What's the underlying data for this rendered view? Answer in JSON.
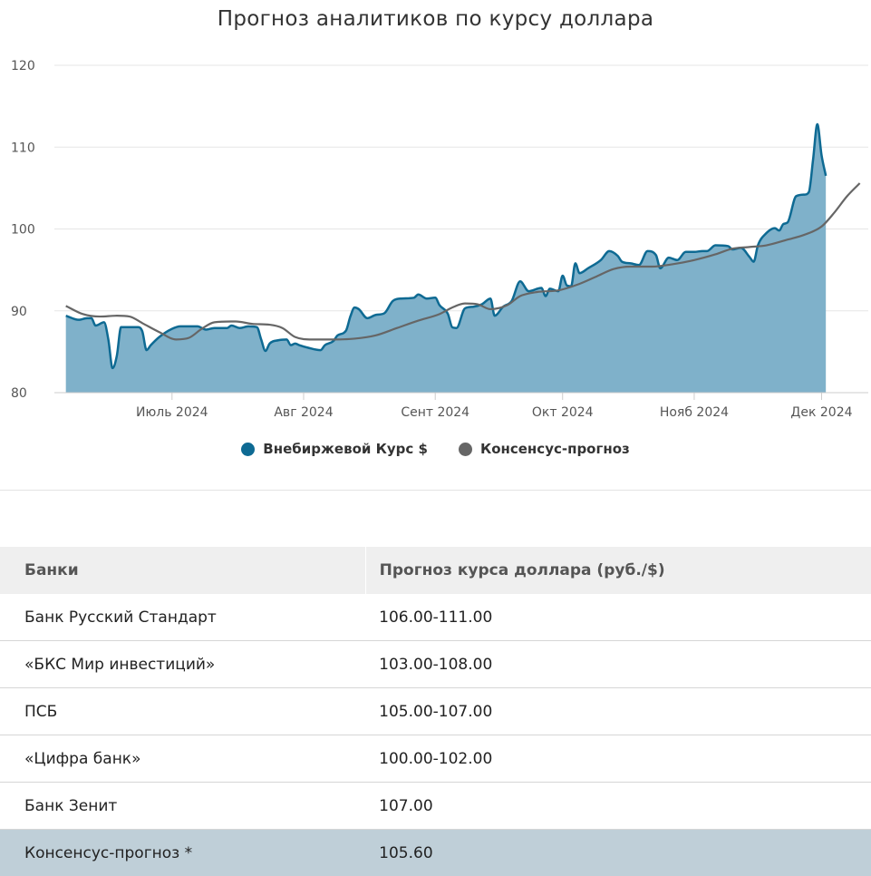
{
  "chart_data": {
    "type": "area",
    "title": "Прогноз аналитиков по курсу доллара",
    "ylim": [
      80,
      120
    ],
    "yticks": [
      80,
      90,
      100,
      110,
      120
    ],
    "xlim": [
      "2024-06-05",
      "2024-12-12"
    ],
    "xticks": [
      {
        "date": "2024-07-01",
        "label": "Июль 2024"
      },
      {
        "date": "2024-08-01",
        "label": "Авг 2024"
      },
      {
        "date": "2024-09-01",
        "label": "Сент 2024"
      },
      {
        "date": "2024-10-01",
        "label": "Окт 2024"
      },
      {
        "date": "2024-11-01",
        "label": "Нояб 2024"
      },
      {
        "date": "2024-12-01",
        "label": "Дек 2024"
      }
    ],
    "grid": true,
    "legend_position": "bottom",
    "series": [
      {
        "name": "Внебиржевой Курс $",
        "color": "#0e6a93",
        "fill": "#7fb1ca",
        "style": "area",
        "points": [
          [
            "2024-06-06",
            89.4
          ],
          [
            "2024-06-09",
            88.9
          ],
          [
            "2024-06-11",
            89.1
          ],
          [
            "2024-06-12",
            89.1
          ],
          [
            "2024-06-13",
            88.2
          ],
          [
            "2024-06-15",
            88.6
          ],
          [
            "2024-06-16",
            86.5
          ],
          [
            "2024-06-17",
            83.0
          ],
          [
            "2024-06-18",
            84.5
          ],
          [
            "2024-06-19",
            88.0
          ],
          [
            "2024-06-23",
            88.0
          ],
          [
            "2024-06-24",
            87.5
          ],
          [
            "2024-06-25",
            85.2
          ],
          [
            "2024-06-26",
            85.8
          ],
          [
            "2024-06-28",
            86.8
          ],
          [
            "2024-07-01",
            87.8
          ],
          [
            "2024-07-03",
            88.1
          ],
          [
            "2024-07-07",
            88.1
          ],
          [
            "2024-07-09",
            87.7
          ],
          [
            "2024-07-11",
            87.9
          ],
          [
            "2024-07-14",
            87.9
          ],
          [
            "2024-07-15",
            88.2
          ],
          [
            "2024-07-17",
            87.9
          ],
          [
            "2024-07-19",
            88.1
          ],
          [
            "2024-07-21",
            88.0
          ],
          [
            "2024-07-22",
            86.5
          ],
          [
            "2024-07-23",
            85.1
          ],
          [
            "2024-07-24",
            86.0
          ],
          [
            "2024-07-26",
            86.4
          ],
          [
            "2024-07-28",
            86.5
          ],
          [
            "2024-07-29",
            85.8
          ],
          [
            "2024-07-30",
            86.0
          ],
          [
            "2024-07-31",
            85.8
          ],
          [
            "2024-08-02",
            85.5
          ],
          [
            "2024-08-05",
            85.2
          ],
          [
            "2024-08-06",
            85.8
          ],
          [
            "2024-08-08",
            86.3
          ],
          [
            "2024-08-09",
            87.0
          ],
          [
            "2024-08-11",
            87.6
          ],
          [
            "2024-08-12",
            89.3
          ],
          [
            "2024-08-13",
            90.4
          ],
          [
            "2024-08-14",
            90.2
          ],
          [
            "2024-08-16",
            89.1
          ],
          [
            "2024-08-18",
            89.5
          ],
          [
            "2024-08-20",
            89.7
          ],
          [
            "2024-08-22",
            91.2
          ],
          [
            "2024-08-24",
            91.5
          ],
          [
            "2024-08-27",
            91.6
          ],
          [
            "2024-08-28",
            92.0
          ],
          [
            "2024-08-30",
            91.5
          ],
          [
            "2024-09-01",
            91.6
          ],
          [
            "2024-09-02",
            90.7
          ],
          [
            "2024-09-04",
            89.6
          ],
          [
            "2024-09-05",
            88.0
          ],
          [
            "2024-09-06",
            87.9
          ],
          [
            "2024-09-08",
            90.3
          ],
          [
            "2024-09-10",
            90.5
          ],
          [
            "2024-09-12",
            90.8
          ],
          [
            "2024-09-14",
            91.5
          ],
          [
            "2024-09-15",
            89.4
          ],
          [
            "2024-09-17",
            90.5
          ],
          [
            "2024-09-19",
            91.2
          ],
          [
            "2024-09-21",
            93.6
          ],
          [
            "2024-09-23",
            92.4
          ],
          [
            "2024-09-26",
            92.8
          ],
          [
            "2024-09-27",
            91.8
          ],
          [
            "2024-09-28",
            92.7
          ],
          [
            "2024-09-30",
            92.4
          ],
          [
            "2024-10-01",
            94.3
          ],
          [
            "2024-10-02",
            93.1
          ],
          [
            "2024-10-03",
            93.0
          ],
          [
            "2024-10-04",
            95.8
          ],
          [
            "2024-10-05",
            94.6
          ],
          [
            "2024-10-07",
            95.2
          ],
          [
            "2024-10-10",
            96.2
          ],
          [
            "2024-10-12",
            97.3
          ],
          [
            "2024-10-14",
            96.7
          ],
          [
            "2024-10-15",
            96.0
          ],
          [
            "2024-10-17",
            95.8
          ],
          [
            "2024-10-19",
            95.6
          ],
          [
            "2024-10-21",
            97.3
          ],
          [
            "2024-10-23",
            96.8
          ],
          [
            "2024-10-24",
            95.2
          ],
          [
            "2024-10-26",
            96.5
          ],
          [
            "2024-10-28",
            96.2
          ],
          [
            "2024-10-30",
            97.2
          ],
          [
            "2024-11-01",
            97.2
          ],
          [
            "2024-11-03",
            97.3
          ],
          [
            "2024-11-04",
            97.3
          ],
          [
            "2024-11-06",
            98.0
          ],
          [
            "2024-11-09",
            97.9
          ],
          [
            "2024-11-10",
            97.5
          ],
          [
            "2024-11-12",
            97.7
          ],
          [
            "2024-11-14",
            96.6
          ],
          [
            "2024-11-15",
            96.0
          ],
          [
            "2024-11-16",
            98.0
          ],
          [
            "2024-11-18",
            99.5
          ],
          [
            "2024-11-20",
            100.1
          ],
          [
            "2024-11-21",
            99.8
          ],
          [
            "2024-11-22",
            100.6
          ],
          [
            "2024-11-23",
            100.8
          ],
          [
            "2024-11-25",
            104.0
          ],
          [
            "2024-11-27",
            104.2
          ],
          [
            "2024-11-28",
            104.5
          ],
          [
            "2024-11-29",
            108.5
          ],
          [
            "2024-11-30",
            112.8
          ],
          [
            "2024-12-01",
            109.0
          ],
          [
            "2024-12-02",
            106.5
          ]
        ]
      },
      {
        "name": "Консенсус-прогноз",
        "color": "#666666",
        "style": "line",
        "points": [
          [
            "2024-06-06",
            90.6
          ],
          [
            "2024-06-10",
            89.6
          ],
          [
            "2024-06-14",
            89.3
          ],
          [
            "2024-06-18",
            89.4
          ],
          [
            "2024-06-21",
            89.3
          ],
          [
            "2024-06-24",
            88.5
          ],
          [
            "2024-06-28",
            87.4
          ],
          [
            "2024-07-02",
            86.5
          ],
          [
            "2024-07-05",
            86.7
          ],
          [
            "2024-07-08",
            87.8
          ],
          [
            "2024-07-11",
            88.6
          ],
          [
            "2024-07-16",
            88.7
          ],
          [
            "2024-07-20",
            88.4
          ],
          [
            "2024-07-24",
            88.3
          ],
          [
            "2024-07-27",
            87.9
          ],
          [
            "2024-07-30",
            86.8
          ],
          [
            "2024-08-03",
            86.5
          ],
          [
            "2024-08-08",
            86.5
          ],
          [
            "2024-08-13",
            86.6
          ],
          [
            "2024-08-18",
            87.0
          ],
          [
            "2024-08-23",
            87.9
          ],
          [
            "2024-08-28",
            88.8
          ],
          [
            "2024-09-02",
            89.6
          ],
          [
            "2024-09-05",
            90.4
          ],
          [
            "2024-09-08",
            90.9
          ],
          [
            "2024-09-11",
            90.8
          ],
          [
            "2024-09-14",
            90.2
          ],
          [
            "2024-09-18",
            90.7
          ],
          [
            "2024-09-21",
            91.8
          ],
          [
            "2024-09-25",
            92.3
          ],
          [
            "2024-09-30",
            92.5
          ],
          [
            "2024-10-05",
            93.3
          ],
          [
            "2024-10-09",
            94.2
          ],
          [
            "2024-10-13",
            95.1
          ],
          [
            "2024-10-17",
            95.4
          ],
          [
            "2024-10-22",
            95.4
          ],
          [
            "2024-10-27",
            95.7
          ],
          [
            "2024-11-01",
            96.2
          ],
          [
            "2024-11-06",
            96.9
          ],
          [
            "2024-11-10",
            97.6
          ],
          [
            "2024-11-14",
            97.8
          ],
          [
            "2024-11-18",
            98.0
          ],
          [
            "2024-11-23",
            98.7
          ],
          [
            "2024-11-27",
            99.3
          ],
          [
            "2024-12-01",
            100.3
          ],
          [
            "2024-12-04",
            102.0
          ],
          [
            "2024-12-07",
            104.0
          ],
          [
            "2024-12-10",
            105.6
          ]
        ]
      }
    ]
  },
  "table": {
    "headers": [
      "Банки",
      "Прогноз курса доллара (руб./$)"
    ],
    "rows": [
      [
        "Банк Русский Стандарт",
        "106.00-111.00"
      ],
      [
        "«БКС Мир инвестиций»",
        "103.00-108.00"
      ],
      [
        "ПСБ",
        "105.00-107.00"
      ],
      [
        "«Цифра банк»",
        "100.00-102.00"
      ],
      [
        "Банк Зенит",
        "107.00"
      ],
      [
        "Консенсус-прогноз *",
        "105.60"
      ]
    ]
  }
}
